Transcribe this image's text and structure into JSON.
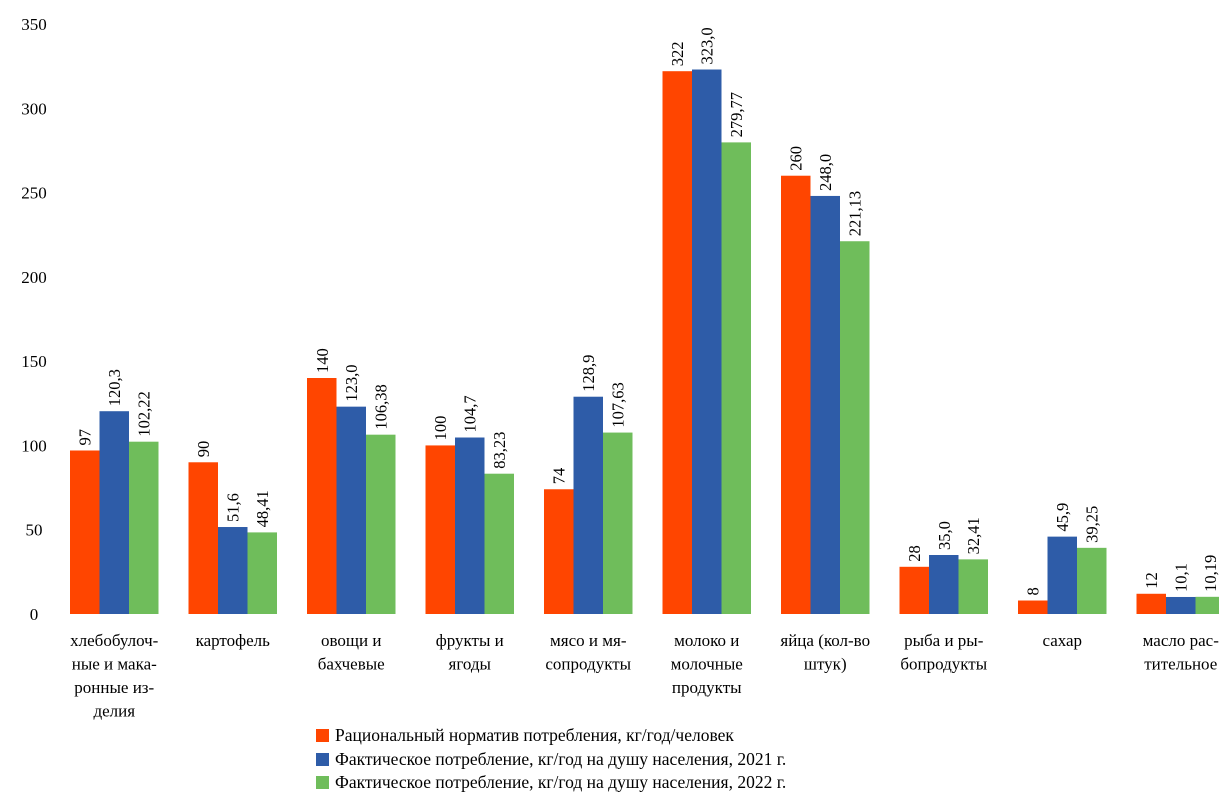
{
  "chart_data": {
    "type": "bar",
    "categories": [
      [
        "хлебобулоч-",
        "ные и мака-",
        "ронные из-",
        "делия"
      ],
      [
        "картофель"
      ],
      [
        "овощи и",
        "бахчевые"
      ],
      [
        "фрукты и",
        "ягоды"
      ],
      [
        "мясо и мя-",
        "сопродукты"
      ],
      [
        "молоко и",
        "молочные",
        "продукты"
      ],
      [
        "яйца (кол-во",
        "штук)"
      ],
      [
        "рыба и ры-",
        "бопродукты"
      ],
      [
        "сахар"
      ],
      [
        "масло рас-",
        "тительное"
      ]
    ],
    "series": [
      {
        "name": "Рациональный норматив потребления, кг/год/человек",
        "color": "#ff4500",
        "values": [
          97,
          90,
          140,
          100,
          74,
          322,
          260,
          28,
          8,
          12
        ],
        "labels": [
          "97",
          "90",
          "140",
          "100",
          "74",
          "322",
          "260",
          "28",
          "8",
          "12"
        ]
      },
      {
        "name": "Фактическое потребление, кг/год на душу населения, 2021 г.",
        "color": "#2e5ca8",
        "values": [
          120.3,
          51.6,
          123.0,
          104.7,
          128.9,
          323.0,
          248.0,
          35.0,
          45.9,
          10.1
        ],
        "labels": [
          "120,3",
          "51,6",
          "123,0",
          "104,7",
          "128,9",
          "323,0",
          "248,0",
          "35,0",
          "45,9",
          "10,1"
        ]
      },
      {
        "name": "Фактическое потребление, кг/год на душу населения, 2022 г.",
        "color": "#6fbd5b",
        "values": [
          102.22,
          48.41,
          106.38,
          83.23,
          107.63,
          279.77,
          221.13,
          32.41,
          39.25,
          10.19
        ],
        "labels": [
          "102,22",
          "48,41",
          "106,38",
          "83,23",
          "107,63",
          "279,77",
          "221,13",
          "32,41",
          "39,25",
          "10,19"
        ]
      }
    ],
    "yticks": [
      "0",
      "50",
      "100",
      "150",
      "200",
      "250",
      "300",
      "350"
    ],
    "ylim": [
      0,
      350
    ],
    "grid": false,
    "legend": "bottom"
  }
}
